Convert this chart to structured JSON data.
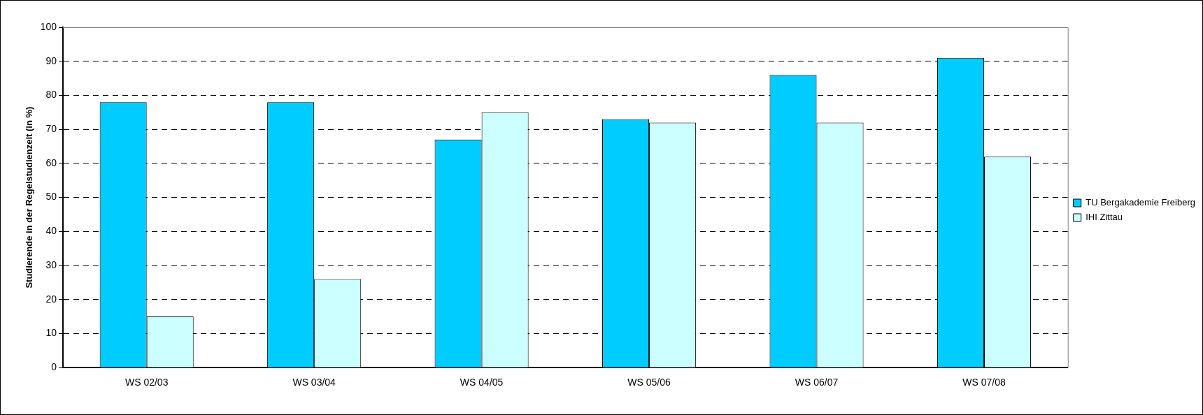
{
  "chart_data": {
    "type": "bar",
    "ylabel": "Studierende in der Regelstudienzeit (in %)",
    "categories": [
      "WS 02/03",
      "WS 03/04",
      "WS 04/05",
      "WS 05/06",
      "WS 06/07",
      "WS 07/08"
    ],
    "series": [
      {
        "name": "TU Bergakademie Freiberg",
        "color": "#00ccff",
        "values": [
          78,
          78,
          67,
          73,
          86,
          91
        ]
      },
      {
        "name": "IHI Zittau",
        "color": "#ccffff",
        "values": [
          15,
          26,
          75,
          72,
          72,
          62
        ]
      }
    ],
    "ylim": [
      0,
      100
    ],
    "yticks": [
      0,
      10,
      20,
      30,
      40,
      50,
      60,
      70,
      80,
      90,
      100
    ],
    "grid": "y",
    "legend": "right"
  }
}
